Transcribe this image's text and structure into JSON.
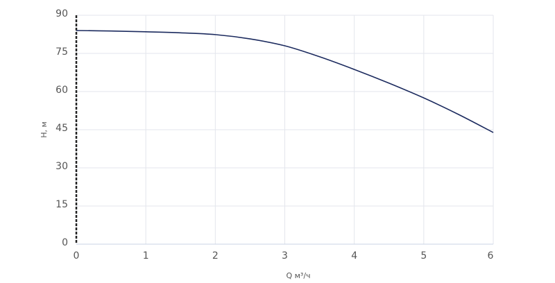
{
  "chart_data": {
    "type": "line",
    "x_label": "Q м³/ч",
    "y_label": "H, м",
    "x": [
      0,
      0.5,
      1,
      1.5,
      2,
      2.5,
      3,
      3.5,
      4,
      4.5,
      5,
      5.5,
      6
    ],
    "series": [
      {
        "name": "H",
        "color": "#1b2a5e",
        "values": [
          84,
          83.8,
          83.5,
          83.1,
          82.4,
          80.7,
          78,
          73.7,
          68.7,
          63.3,
          57.5,
          51,
          43.9
        ]
      }
    ],
    "xlim": [
      0,
      6
    ],
    "xticks": [
      0,
      1,
      2,
      3,
      4,
      5,
      6
    ],
    "ylim": [
      0,
      90
    ],
    "yticks": [
      0,
      15,
      30,
      45,
      60,
      75,
      90
    ],
    "grid": true
  }
}
